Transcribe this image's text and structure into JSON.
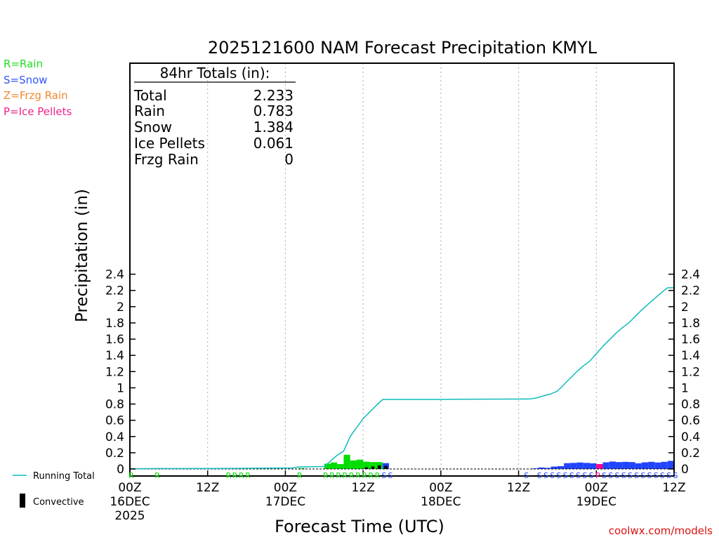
{
  "chart_data": {
    "type": "bar",
    "title": "2025121600 NAM Forecast Precipitation KMYL",
    "ylabel": "Precipitation (in)",
    "xlabel": "Forecast Time (UTC)",
    "ylim": [
      0,
      2.5
    ],
    "xlim_hours": [
      0,
      84
    ],
    "yticks": [
      0,
      0.2,
      0.4,
      0.6,
      0.8,
      1,
      1.2,
      1.4,
      1.6,
      1.8,
      2,
      2.2,
      2.4
    ],
    "ytick_labels": [
      "0",
      "0.2",
      "0.4",
      "0.6",
      "0.8",
      "1",
      "1.2",
      "1.4",
      "1.6",
      "1.8",
      "2",
      "2.2",
      "2.4"
    ],
    "xticks": [
      {
        "hour": 0,
        "label": "00Z",
        "date": "16DEC",
        "year": "2025"
      },
      {
        "hour": 12,
        "label": "12Z",
        "date": "",
        "year": ""
      },
      {
        "hour": 24,
        "label": "00Z",
        "date": "17DEC",
        "year": ""
      },
      {
        "hour": 36,
        "label": "12Z",
        "date": "",
        "year": ""
      },
      {
        "hour": 48,
        "label": "00Z",
        "date": "18DEC",
        "year": ""
      },
      {
        "hour": 60,
        "label": "12Z",
        "date": "",
        "year": ""
      },
      {
        "hour": 72,
        "label": "00Z",
        "date": "19DEC",
        "year": ""
      },
      {
        "hour": 84,
        "label": "12Z",
        "date": "",
        "year": ""
      }
    ],
    "gridlines_hours": [
      12,
      24,
      36,
      48,
      60,
      72
    ],
    "totals_box": {
      "heading": "84hr Totals (in):",
      "rows": [
        {
          "label": "Total",
          "value": "2.233"
        },
        {
          "label": "Rain",
          "value": "0.783"
        },
        {
          "label": "Snow",
          "value": "1.384"
        },
        {
          "label": "Ice Pellets",
          "value": "0.061"
        },
        {
          "label": "Frzg Rain",
          "value": "0"
        }
      ]
    },
    "type_legend": [
      {
        "text": "R=Rain",
        "color": "#22dd22"
      },
      {
        "text": "S=Snow",
        "color": "#3355ff"
      },
      {
        "text": "Z=Frzg Rain",
        "color": "#f08a30"
      },
      {
        "text": "P=Ice Pellets",
        "color": "#ee2288"
      }
    ],
    "series_legend": [
      {
        "text": "Running Total",
        "type": "line",
        "color": "#11bbbb"
      },
      {
        "text": "Convective",
        "type": "bar",
        "color": "#000000"
      }
    ],
    "colors": {
      "rain": "#00dd00",
      "snow": "#2244ff",
      "ice": "#ff0088",
      "frzg": "#f08a30",
      "convective": "#000000",
      "running_total": "#11bbbb",
      "axis": "#000000",
      "grid": "#aaaaaa"
    },
    "bar_width_hours": 1,
    "bars": [
      {
        "hour": 26,
        "type": "R",
        "value": 0.01
      },
      {
        "hour": 30,
        "type": "R",
        "value": 0.065
      },
      {
        "hour": 31,
        "type": "R",
        "value": 0.08
      },
      {
        "hour": 32,
        "type": "R",
        "value": 0.06
      },
      {
        "hour": 33,
        "type": "R",
        "value": 0.175
      },
      {
        "hour": 34,
        "type": "R",
        "value": 0.105
      },
      {
        "hour": 35,
        "type": "R",
        "value": 0.115
      },
      {
        "hour": 36,
        "type": "R",
        "value": 0.09
      },
      {
        "hour": 37,
        "type": "R",
        "value": 0.085
      },
      {
        "hour": 38,
        "type": "R",
        "value": 0.085
      },
      {
        "hour": 39,
        "type": "S",
        "value": 0.072
      },
      {
        "hour": 62,
        "type": "S",
        "value": 0.008
      },
      {
        "hour": 63,
        "type": "S",
        "value": 0.018
      },
      {
        "hour": 64,
        "type": "S",
        "value": 0.014
      },
      {
        "hour": 65,
        "type": "S",
        "value": 0.03
      },
      {
        "hour": 66,
        "type": "S",
        "value": 0.035
      },
      {
        "hour": 67,
        "type": "S",
        "value": 0.072
      },
      {
        "hour": 68,
        "type": "S",
        "value": 0.075
      },
      {
        "hour": 69,
        "type": "S",
        "value": 0.08
      },
      {
        "hour": 70,
        "type": "S",
        "value": 0.075
      },
      {
        "hour": 71,
        "type": "S",
        "value": 0.07
      },
      {
        "hour": 72,
        "type": "P",
        "value": 0.061
      },
      {
        "hour": 73,
        "type": "S",
        "value": 0.082
      },
      {
        "hour": 74,
        "type": "S",
        "value": 0.092
      },
      {
        "hour": 75,
        "type": "S",
        "value": 0.085
      },
      {
        "hour": 76,
        "type": "S",
        "value": 0.088
      },
      {
        "hour": 77,
        "type": "S",
        "value": 0.085
      },
      {
        "hour": 78,
        "type": "S",
        "value": 0.07
      },
      {
        "hour": 79,
        "type": "S",
        "value": 0.082
      },
      {
        "hour": 80,
        "type": "S",
        "value": 0.088
      },
      {
        "hour": 81,
        "type": "S",
        "value": 0.08
      },
      {
        "hour": 82,
        "type": "S",
        "value": 0.088
      },
      {
        "hour": 83,
        "type": "S",
        "value": 0.1
      }
    ],
    "convective_bars": [
      {
        "hour": 36,
        "value": 0.02
      },
      {
        "hour": 37,
        "value": 0.03
      },
      {
        "hour": 38,
        "value": 0.045
      },
      {
        "hour": 39,
        "value": 0.04
      }
    ],
    "type_markers": [
      {
        "hour": 0,
        "letter": "R"
      },
      {
        "hour": 4,
        "letter": "R"
      },
      {
        "hour": 15,
        "letter": "R"
      },
      {
        "hour": 16,
        "letter": "R"
      },
      {
        "hour": 17,
        "letter": "R"
      },
      {
        "hour": 18,
        "letter": "R"
      },
      {
        "hour": 26,
        "letter": "R"
      },
      {
        "hour": 30,
        "letter": "R"
      },
      {
        "hour": 31,
        "letter": "R"
      },
      {
        "hour": 32,
        "letter": "R"
      },
      {
        "hour": 33,
        "letter": "R"
      },
      {
        "hour": 34,
        "letter": "R"
      },
      {
        "hour": 35,
        "letter": "R"
      },
      {
        "hour": 36,
        "letter": "R"
      },
      {
        "hour": 37,
        "letter": "R"
      },
      {
        "hour": 38,
        "letter": "R"
      },
      {
        "hour": 39,
        "letter": "S"
      },
      {
        "hour": 40,
        "letter": "S"
      },
      {
        "hour": 61,
        "letter": "S"
      },
      {
        "hour": 63,
        "letter": "S"
      },
      {
        "hour": 64,
        "letter": "S"
      },
      {
        "hour": 65,
        "letter": "S"
      },
      {
        "hour": 66,
        "letter": "S"
      },
      {
        "hour": 67,
        "letter": "S"
      },
      {
        "hour": 68,
        "letter": "S"
      },
      {
        "hour": 69,
        "letter": "S"
      },
      {
        "hour": 70,
        "letter": "S"
      },
      {
        "hour": 71,
        "letter": "S"
      },
      {
        "hour": 72,
        "letter": "P"
      },
      {
        "hour": 73,
        "letter": "S"
      },
      {
        "hour": 74,
        "letter": "S"
      },
      {
        "hour": 75,
        "letter": "S"
      },
      {
        "hour": 76,
        "letter": "S"
      },
      {
        "hour": 77,
        "letter": "S"
      },
      {
        "hour": 78,
        "letter": "S"
      },
      {
        "hour": 79,
        "letter": "S"
      },
      {
        "hour": 80,
        "letter": "S"
      },
      {
        "hour": 81,
        "letter": "S"
      },
      {
        "hour": 82,
        "letter": "S"
      },
      {
        "hour": 83,
        "letter": "S"
      },
      {
        "hour": 84,
        "letter": "S"
      }
    ],
    "running_total": {
      "hours": [
        0,
        4,
        15,
        24,
        25,
        26,
        30,
        31,
        32,
        33,
        34,
        35,
        36,
        37,
        38,
        39,
        40,
        48,
        60,
        61,
        62,
        63,
        64,
        65,
        66,
        67,
        68,
        69,
        70,
        71,
        72,
        73,
        74,
        75,
        76,
        77,
        78,
        79,
        80,
        81,
        82,
        83,
        84
      ],
      "values": [
        0.002,
        0.005,
        0.007,
        0.012,
        0.012,
        0.025,
        0.03,
        0.1,
        0.17,
        0.22,
        0.4,
        0.51,
        0.62,
        0.7,
        0.78,
        0.855,
        0.858,
        0.858,
        0.862,
        0.862,
        0.865,
        0.88,
        0.905,
        0.925,
        0.96,
        1.04,
        1.12,
        1.2,
        1.27,
        1.33,
        1.42,
        1.51,
        1.59,
        1.67,
        1.74,
        1.8,
        1.88,
        1.96,
        2.03,
        2.1,
        2.17,
        2.233,
        2.233
      ]
    }
  },
  "footer": {
    "site": "coolwx.com/models"
  }
}
